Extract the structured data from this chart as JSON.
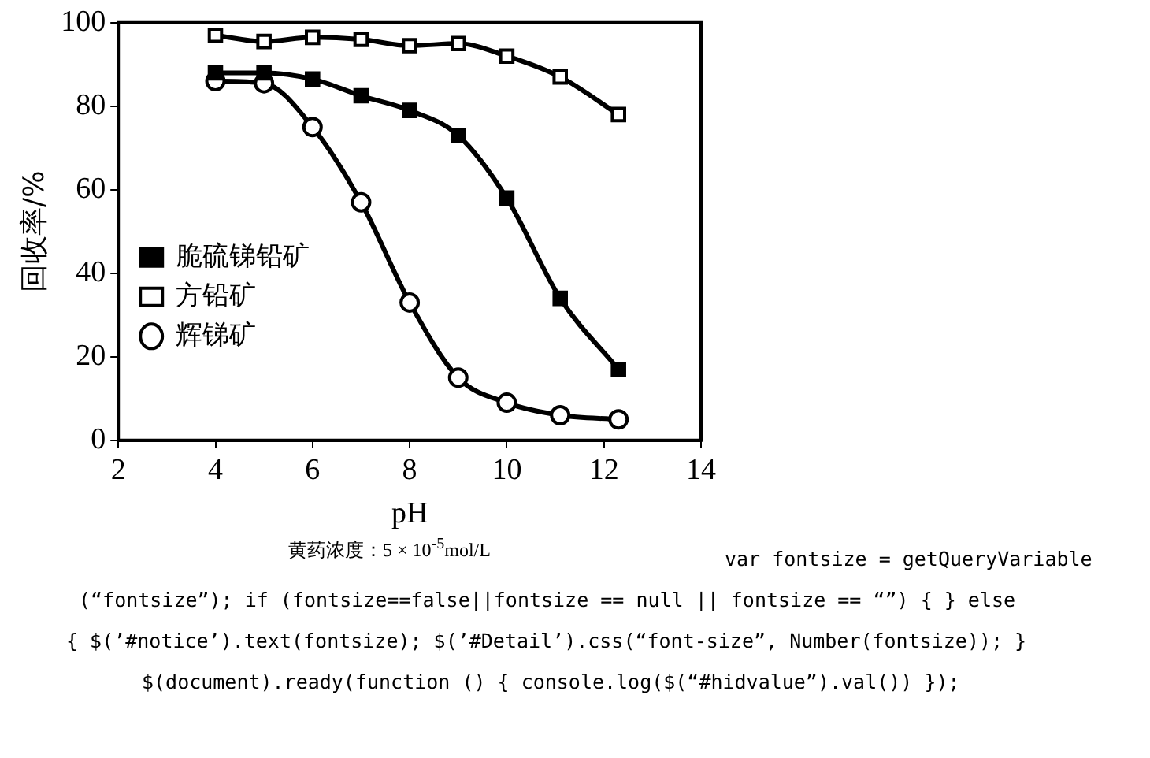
{
  "chart_data": {
    "type": "line",
    "xlabel": "pH",
    "ylabel": "回收率/%",
    "x": [
      4,
      5,
      6,
      7,
      8,
      9,
      10,
      11.1,
      12.3
    ],
    "xlim": [
      2,
      14
    ],
    "xticks": [
      2,
      4,
      6,
      8,
      10,
      12,
      14
    ],
    "ylim": [
      0,
      100
    ],
    "yticks": [
      0,
      20,
      40,
      60,
      80,
      100
    ],
    "legend": "left",
    "grid": false,
    "line_style": "solid",
    "series": [
      {
        "name": "脆硫锑铅矿",
        "color": "#000000",
        "marker": "square",
        "colors": [
          "#000000",
          "#000000",
          "#000000",
          "#000000",
          "#000000",
          "#000000",
          "#000000",
          "#000000",
          "#000000"
        ],
        "values": [
          88,
          88,
          86.5,
          82.5,
          79,
          73,
          58,
          34,
          17
        ]
      },
      {
        "name": "方铅矿",
        "color": "#000000",
        "marker": "square",
        "colors": [
          "#ffffff",
          "#ffffff",
          "#ffffff",
          "#ffffff",
          "#ffffff",
          "#ffffff",
          "#ffffff",
          "#ffffff",
          "#ffffff"
        ],
        "values": [
          97,
          95.5,
          96.5,
          96,
          94.5,
          95,
          92,
          87,
          78
        ]
      },
      {
        "name": "辉锑矿",
        "color": "#000000",
        "marker": "circle",
        "colors": [
          "#ffffff",
          "#ffffff",
          "#ffffff",
          "#ffffff",
          "#ffffff",
          "#ffffff",
          "#ffffff",
          "#ffffff",
          "#ffffff"
        ],
        "values": [
          86,
          85.5,
          75,
          57,
          33,
          15,
          9,
          6,
          5
        ]
      }
    ],
    "annotations": [
      "黄药浓度：5 × 10$^{-5}$mol/L",
      "var fontsize = getQueryVariable",
      "(“fontsize”); if (fontsize==false||fontsize == null || fontsize == “”) { } else",
      "{ $(’#notice’).text(fontsize); $(’#Detail’).css(“font-size”, Number(fontsize)); }",
      "$(document).ready(function () { console.log($(“#hidvalue”).val()) });"
    ]
  }
}
